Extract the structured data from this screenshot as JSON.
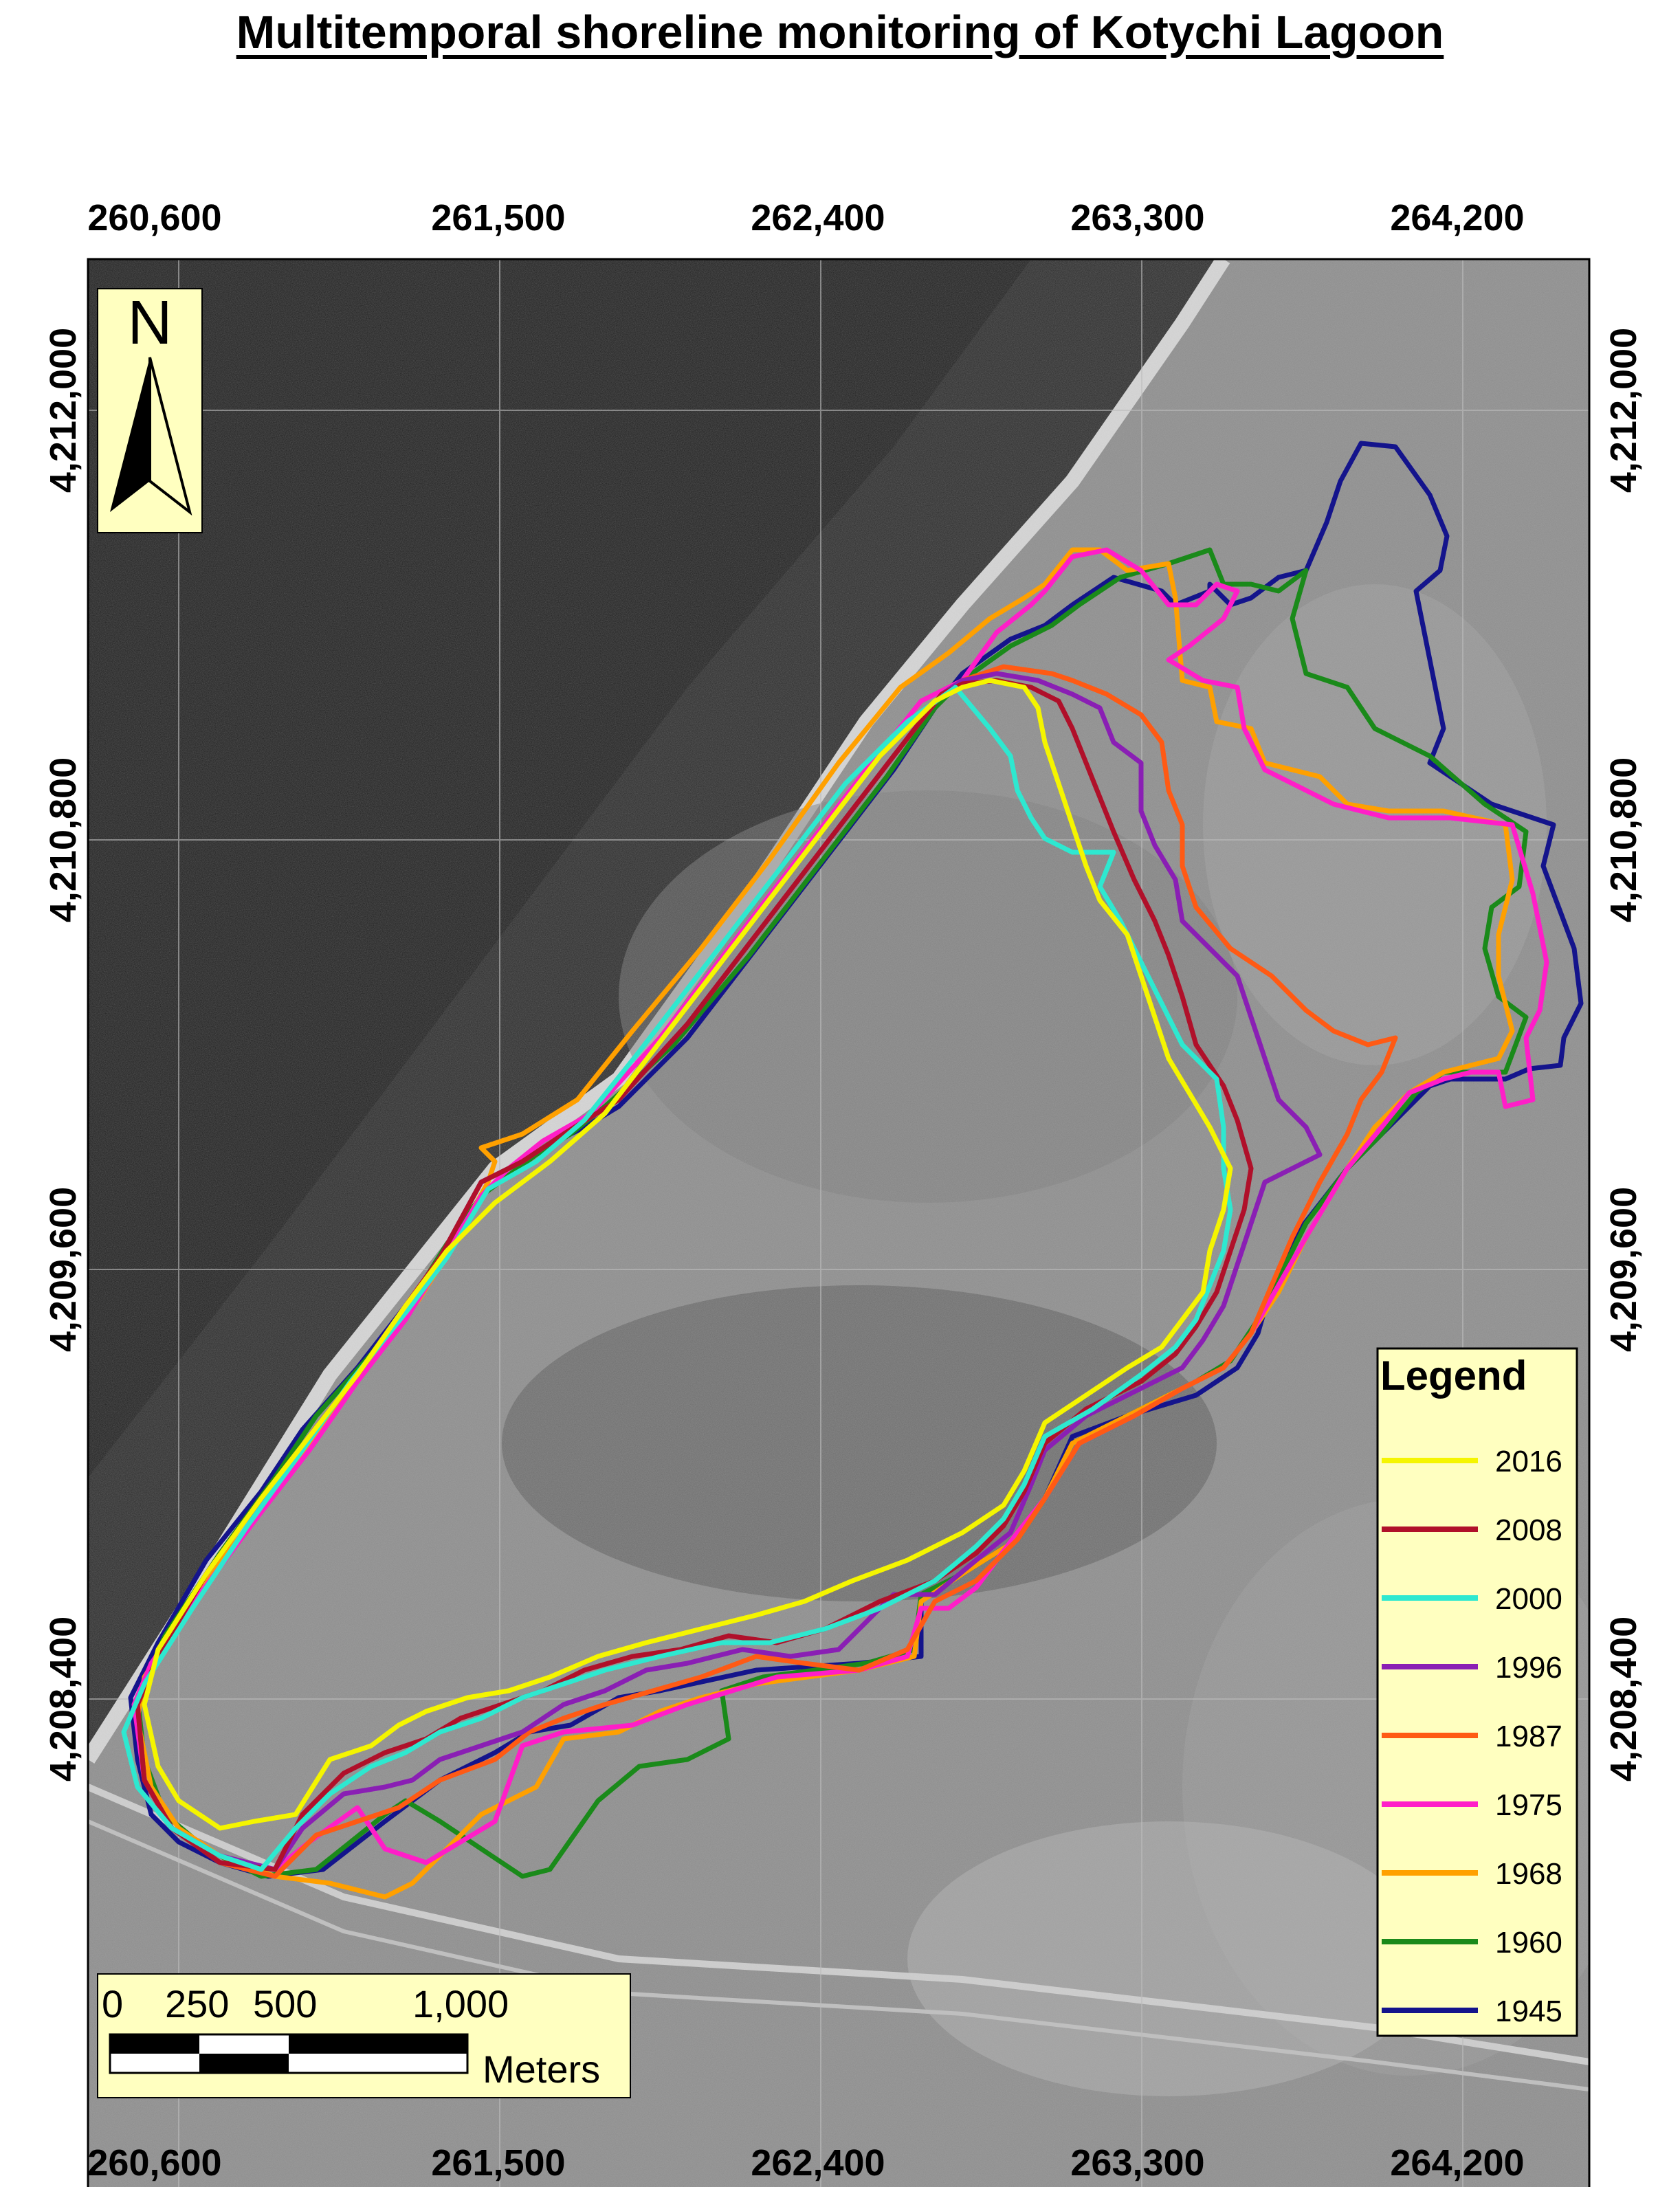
{
  "title": "Multitemporal shoreline monitoring of Kotychi Lagoon",
  "axes": {
    "x_ticks": [
      "260,600",
      "261,500",
      "262,400",
      "263,300",
      "264,200"
    ],
    "y_ticks": [
      "4,212,000",
      "4,210,800",
      "4,209,600",
      "4,208,400"
    ]
  },
  "north_arrow": {
    "label": "N",
    "icon": "north-arrow-icon"
  },
  "legend": {
    "title": "Legend",
    "items": [
      {
        "year": "2016",
        "color": "#f5f500"
      },
      {
        "year": "2008",
        "color": "#b0102a"
      },
      {
        "year": "2000",
        "color": "#2ee8d0"
      },
      {
        "year": "1996",
        "color": "#8a1fb4"
      },
      {
        "year": "1987",
        "color": "#ff5a14"
      },
      {
        "year": "1975",
        "color": "#ff1ec8"
      },
      {
        "year": "1968",
        "color": "#ffa000"
      },
      {
        "year": "1960",
        "color": "#1a8a1a"
      },
      {
        "year": "1945",
        "color": "#14148c"
      }
    ]
  },
  "scale_bar": {
    "labels": [
      "0",
      "250",
      "500",
      "1,000"
    ],
    "unit": "Meters"
  }
}
